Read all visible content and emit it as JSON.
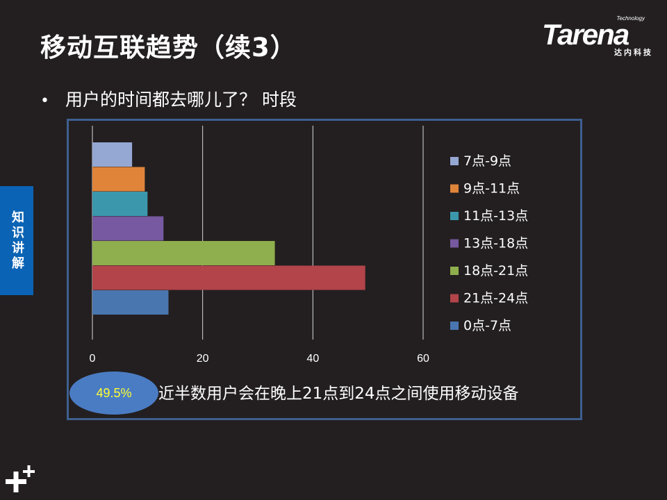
{
  "slide": {
    "title": "移动互联趋势（续3）",
    "bullet": "用户的时间都去哪儿了？ 时段",
    "side_tab": "知识讲解",
    "callout_value": "49.5%",
    "callout_text": "近半数用户会在晚上21点到24点之间使用移动设备"
  },
  "logo": {
    "technology": "Technology",
    "brand": "Tarena",
    "chinese": "达内科技"
  },
  "icons": {
    "bullet": "bullet-dot",
    "corner_decoration": "plus-icon"
  },
  "colors": {
    "background": "#231f20",
    "frame_border": "#3d5f8f",
    "side_tab": "#0a63b4",
    "callout_oval": "#4a7cc4",
    "callout_value": "#ffff33"
  },
  "chart_data": {
    "type": "bar",
    "orientation": "horizontal",
    "title": "",
    "xlabel": "",
    "ylabel": "",
    "xlim": [
      0,
      60
    ],
    "ticks": [
      "0",
      "20",
      "40",
      "60"
    ],
    "tick_values": [
      0,
      20,
      40,
      60
    ],
    "grid": true,
    "legend_position": "right",
    "series": [
      {
        "name": "7点-9点",
        "value": 7.2,
        "color": "#95a8d4"
      },
      {
        "name": "9点-11点",
        "value": 9.5,
        "color": "#e0843a"
      },
      {
        "name": "11点-13点",
        "value": 10.0,
        "color": "#3b98ac"
      },
      {
        "name": "13点-18点",
        "value": 12.9,
        "color": "#7659a0"
      },
      {
        "name": "18点-21点",
        "value": 33.1,
        "color": "#8fae4d"
      },
      {
        "name": "21点-24点",
        "value": 49.5,
        "color": "#b2444a"
      },
      {
        "name": "0点-7点",
        "value": 13.8,
        "color": "#4a76b0"
      }
    ]
  }
}
